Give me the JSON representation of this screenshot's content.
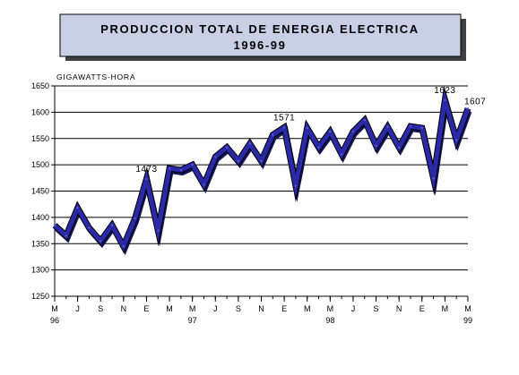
{
  "chart_data": {
    "type": "line",
    "title": "PRODUCCION TOTAL DE ENERGIA ELECTRICA",
    "subtitle": "1996-99",
    "ylabel": "GIGAWATTS-HORA",
    "ylim": [
      1250,
      1650
    ],
    "yticks": [
      1250,
      1300,
      1350,
      1400,
      1450,
      1500,
      1550,
      1600,
      1650
    ],
    "grid": true,
    "x_ticks": [
      {
        "m": "M",
        "y": "96"
      },
      {
        "m": "J",
        "y": ""
      },
      {
        "m": "S",
        "y": ""
      },
      {
        "m": "N",
        "y": ""
      },
      {
        "m": "E",
        "y": ""
      },
      {
        "m": "M",
        "y": ""
      },
      {
        "m": "M",
        "y": "97"
      },
      {
        "m": "J",
        "y": ""
      },
      {
        "m": "S",
        "y": ""
      },
      {
        "m": "N",
        "y": ""
      },
      {
        "m": "E",
        "y": ""
      },
      {
        "m": "M",
        "y": ""
      },
      {
        "m": "M",
        "y": "98"
      },
      {
        "m": "J",
        "y": ""
      },
      {
        "m": "S",
        "y": ""
      },
      {
        "m": "N",
        "y": ""
      },
      {
        "m": "E",
        "y": ""
      },
      {
        "m": "M",
        "y": ""
      },
      {
        "m": "M",
        "y": "99"
      }
    ],
    "series": [
      {
        "color": "#2a2aa8",
        "values": [
          1385,
          1365,
          1418,
          1380,
          1355,
          1385,
          1345,
          1398,
          1473,
          1375,
          1493,
          1490,
          1500,
          1462,
          1515,
          1533,
          1507,
          1540,
          1507,
          1557,
          1571,
          1460,
          1570,
          1533,
          1563,
          1520,
          1563,
          1585,
          1536,
          1572,
          1533,
          1573,
          1570,
          1474,
          1623,
          1547,
          1607
        ]
      }
    ],
    "annotations": [
      {
        "index": 8,
        "text": "1473"
      },
      {
        "index": 20,
        "text": "1571"
      },
      {
        "index": 34,
        "text": "1623"
      },
      {
        "index": 36,
        "text": "1607"
      }
    ]
  }
}
